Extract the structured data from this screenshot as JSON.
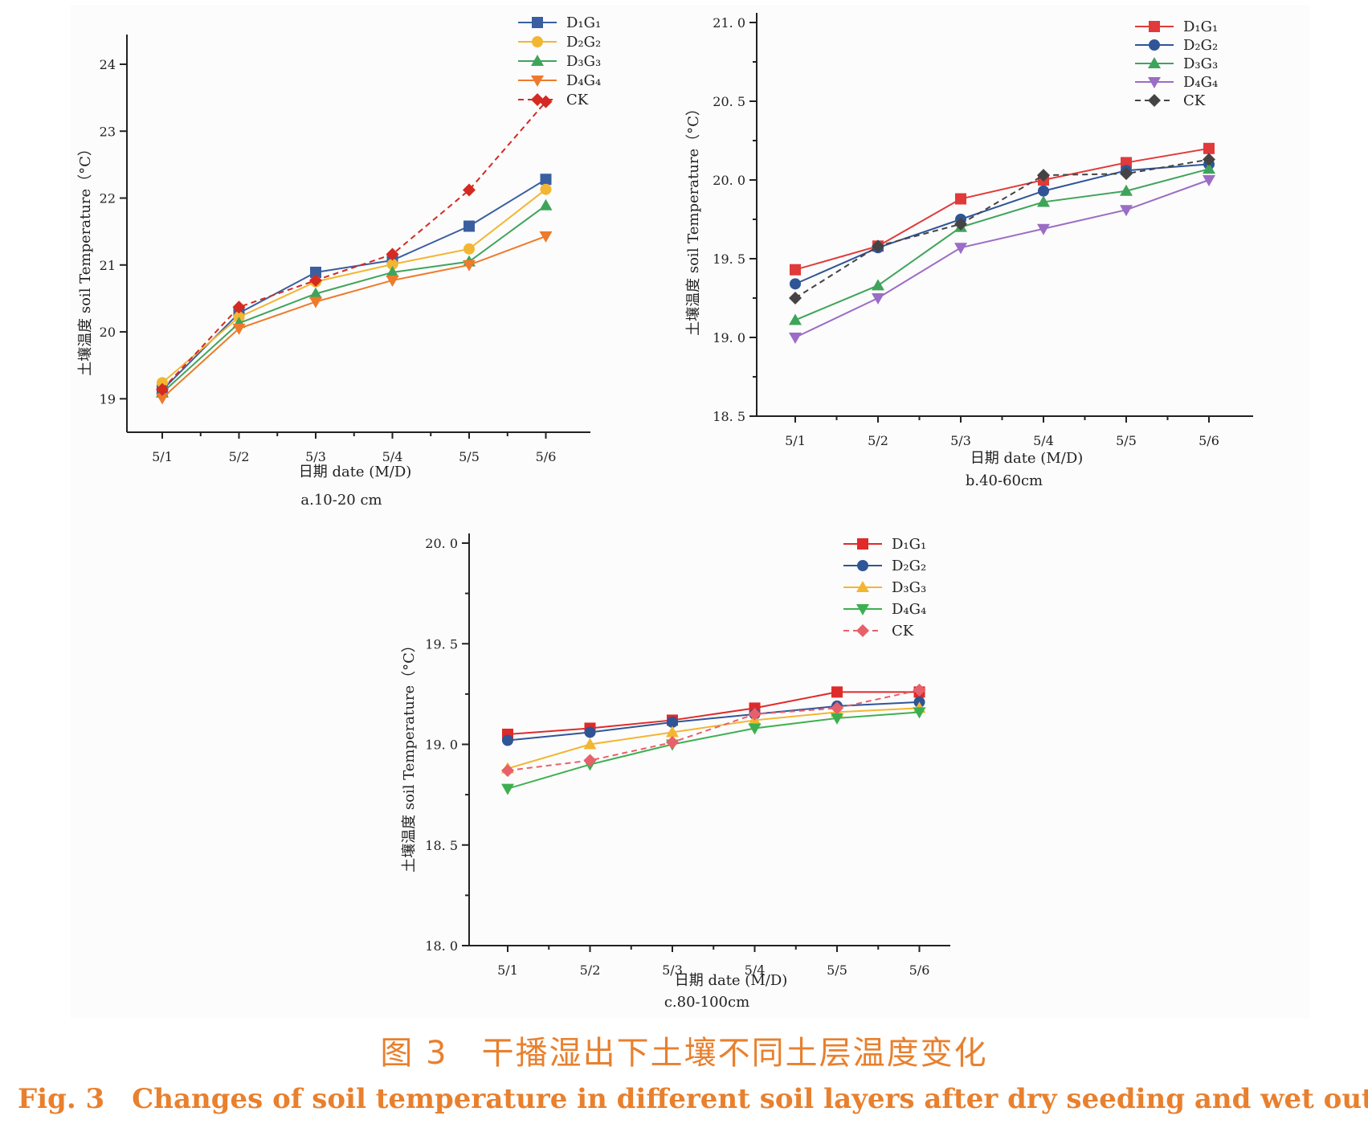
{
  "caption": {
    "cn": "图 3　干播湿出下土壤不同土层温度变化",
    "en_label": "Fig. 3",
    "en_text": "Changes of soil temperature in different soil layers after dry seeding and wet out"
  },
  "chart_data": [
    {
      "type": "line",
      "panel_label": "a.10-20 cm",
      "xlabel": "日期  date (M/D)",
      "ylabel": "土壤温度 soil Temperature（°C）",
      "categories": [
        "5/1",
        "5/2",
        "5/3",
        "5/4",
        "5/5",
        "5/6"
      ],
      "ylim": [
        18.5,
        24.3
      ],
      "yticks": [
        19,
        20,
        21,
        22,
        23,
        24
      ],
      "ytick_labels": [
        "19",
        "20",
        "21",
        "22",
        "23",
        "24"
      ],
      "legend_position": "top-right",
      "series": [
        {
          "name": "D₁G₁",
          "color": "#3a5fa0",
          "marker": "square",
          "dashed": false,
          "values": [
            19.13,
            20.28,
            20.89,
            21.07,
            21.58,
            22.28
          ]
        },
        {
          "name": "D₂G₂",
          "color": "#f2b632",
          "marker": "circle",
          "dashed": false,
          "values": [
            19.24,
            20.22,
            20.75,
            21.01,
            21.24,
            22.13
          ]
        },
        {
          "name": "D₃G₃",
          "color": "#3fa45b",
          "marker": "triangle-up",
          "dashed": false,
          "values": [
            19.09,
            20.13,
            20.57,
            20.89,
            21.05,
            21.89
          ]
        },
        {
          "name": "D₄G₄",
          "color": "#ee7a2b",
          "marker": "triangle-down",
          "dashed": false,
          "values": [
            19.01,
            20.05,
            20.45,
            20.77,
            21.0,
            21.43
          ]
        },
        {
          "name": "CK",
          "color": "#d42a22",
          "marker": "diamond",
          "dashed": true,
          "values": [
            19.14,
            20.37,
            20.77,
            21.16,
            22.12,
            23.44
          ]
        }
      ]
    },
    {
      "type": "line",
      "panel_label": "b.40-60cm",
      "xlabel": "日期  date (M/D)",
      "ylabel": "土壤温度 soil Temperature（°C）",
      "categories": [
        "5/1",
        "5/2",
        "5/3",
        "5/4",
        "5/5",
        "5/6"
      ],
      "ylim": [
        18.5,
        21.0
      ],
      "yticks": [
        18.5,
        19.0,
        19.5,
        20.0,
        20.5,
        21.0
      ],
      "ytick_labels": [
        "18. 5",
        "19. 0",
        "19. 5",
        "20. 0",
        "20. 5",
        "21. 0"
      ],
      "legend_position": "top-right",
      "series": [
        {
          "name": "D₁G₁",
          "color": "#e03a3a",
          "marker": "square",
          "dashed": false,
          "values": [
            19.43,
            19.58,
            19.88,
            20.0,
            20.11,
            20.2
          ]
        },
        {
          "name": "D₂G₂",
          "color": "#2f5597",
          "marker": "circle",
          "dashed": false,
          "values": [
            19.34,
            19.57,
            19.75,
            19.93,
            20.06,
            20.1
          ]
        },
        {
          "name": "D₃G₃",
          "color": "#3fa45b",
          "marker": "triangle-up",
          "dashed": false,
          "values": [
            19.11,
            19.33,
            19.7,
            19.86,
            19.93,
            20.07
          ]
        },
        {
          "name": "D₄G₄",
          "color": "#9b6dc6",
          "marker": "triangle-down",
          "dashed": false,
          "values": [
            19.0,
            19.25,
            19.57,
            19.69,
            19.81,
            20.0
          ]
        },
        {
          "name": "CK",
          "color": "#444444",
          "marker": "diamond",
          "dashed": true,
          "values": [
            19.25,
            19.58,
            19.72,
            20.03,
            20.04,
            20.13
          ]
        }
      ]
    },
    {
      "type": "line",
      "panel_label": "c.80-100cm",
      "xlabel": "日期  date (M/D)",
      "ylabel": "土壤温度 soil Temperature（°C）",
      "categories": [
        "5/1",
        "5/2",
        "5/3",
        "5/4",
        "5/5",
        "5/6"
      ],
      "ylim": [
        18.0,
        20.0
      ],
      "yticks": [
        18.0,
        18.5,
        19.0,
        19.5,
        20.0
      ],
      "ytick_labels": [
        "18. 0",
        "18. 5",
        "19. 0",
        "19. 5",
        "20. 0"
      ],
      "legend_position": "top-right",
      "series": [
        {
          "name": "D₁G₁",
          "color": "#e02a2a",
          "marker": "square",
          "dashed": false,
          "values": [
            19.05,
            19.08,
            19.12,
            19.18,
            19.26,
            19.26
          ]
        },
        {
          "name": "D₂G₂",
          "color": "#2f5597",
          "marker": "circle",
          "dashed": false,
          "values": [
            19.02,
            19.06,
            19.11,
            19.15,
            19.19,
            19.21
          ]
        },
        {
          "name": "D₃G₃",
          "color": "#f2b632",
          "marker": "triangle-up",
          "dashed": false,
          "values": [
            18.88,
            19.0,
            19.06,
            19.12,
            19.16,
            19.18
          ]
        },
        {
          "name": "D₄G₄",
          "color": "#3cb050",
          "marker": "triangle-down",
          "dashed": false,
          "values": [
            18.78,
            18.9,
            19.0,
            19.08,
            19.13,
            19.16
          ]
        },
        {
          "name": "CK",
          "color": "#e8606a",
          "marker": "diamond",
          "dashed": true,
          "values": [
            18.87,
            18.92,
            19.01,
            19.15,
            19.18,
            19.27
          ]
        }
      ]
    }
  ]
}
